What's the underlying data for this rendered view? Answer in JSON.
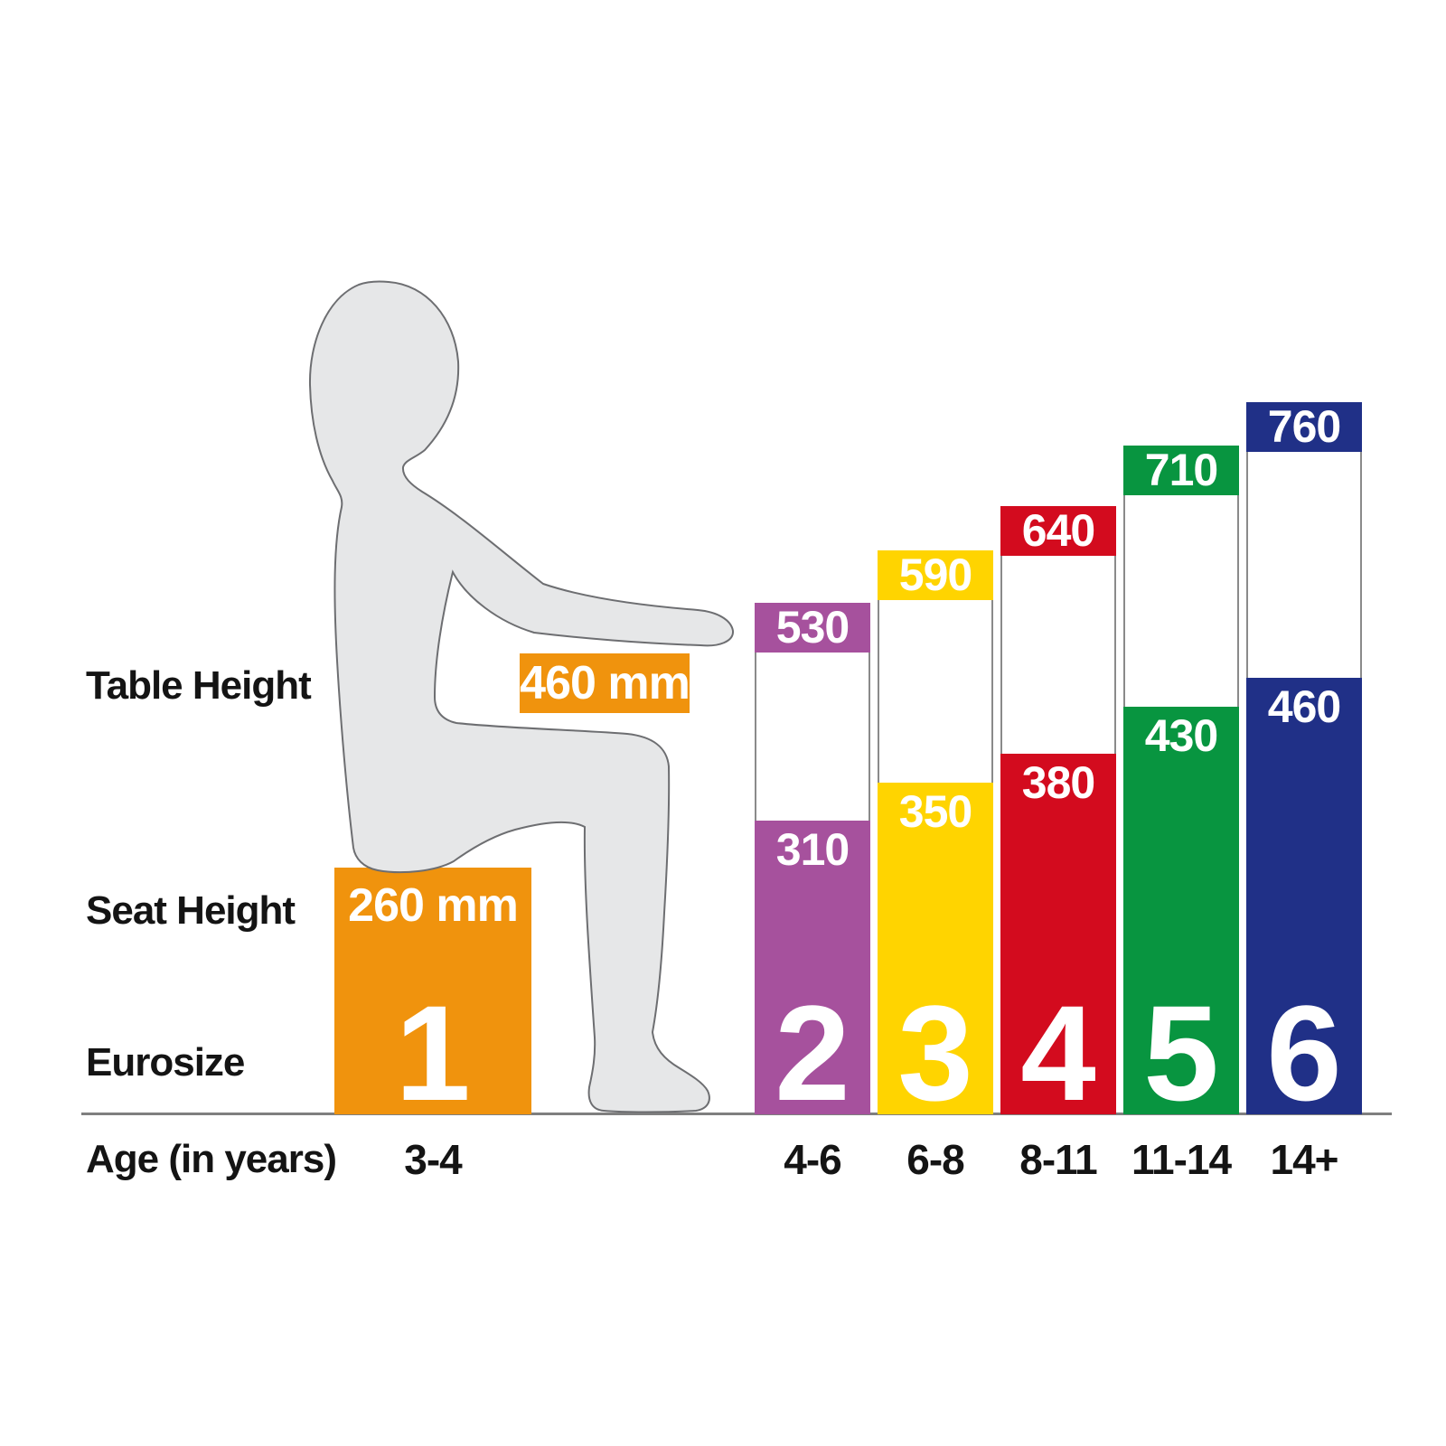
{
  "labels": {
    "table_height": "Table Height",
    "seat_height": "Seat Height",
    "eurosize": "Eurosize",
    "age": "Age (in years)"
  },
  "size1": {
    "table_label": "460 mm",
    "seat_label": "260 mm",
    "eurosize": "1",
    "age": "3-4",
    "table_mm": 460,
    "seat_mm": 260,
    "color": "#F0930D"
  },
  "bars": [
    {
      "eurosize": "2",
      "age": "4-6",
      "table_label": "530",
      "seat_label": "310",
      "table_mm": 530,
      "seat_mm": 310,
      "color": "#A6519D"
    },
    {
      "eurosize": "3",
      "age": "6-8",
      "table_label": "590",
      "seat_label": "350",
      "table_mm": 590,
      "seat_mm": 350,
      "color": "#FFD400"
    },
    {
      "eurosize": "4",
      "age": "8-11",
      "table_label": "640",
      "seat_label": "380",
      "table_mm": 640,
      "seat_mm": 380,
      "color": "#D30B1E"
    },
    {
      "eurosize": "5",
      "age": "11-14",
      "table_label": "710",
      "seat_label": "430",
      "table_mm": 710,
      "seat_mm": 430,
      "color": "#089540"
    },
    {
      "eurosize": "6",
      "age": "14+",
      "table_label": "760",
      "seat_label": "460",
      "table_mm": 760,
      "seat_mm": 460,
      "color": "#203087"
    }
  ],
  "colors": {
    "silhouette_fill": "#E6E7E8",
    "silhouette_stroke": "#6D6E71",
    "baseline": "#7F7F7F",
    "text_dark": "#141414",
    "text_on_bar": "#FFFFFF"
  },
  "chart_data": {
    "type": "bar",
    "title": "Children's furniture sizing: table and seat heights by Eurosize",
    "units": "mm",
    "categories": [
      "1",
      "2",
      "3",
      "4",
      "5",
      "6"
    ],
    "category_label": "Eurosize",
    "ages": [
      "3-4",
      "4-6",
      "6-8",
      "8-11",
      "11-14",
      "14+"
    ],
    "age_label": "Age (in years)",
    "series": [
      {
        "name": "Table Height",
        "values": [
          460,
          530,
          590,
          640,
          710,
          760
        ]
      },
      {
        "name": "Seat Height",
        "values": [
          260,
          310,
          350,
          380,
          430,
          460
        ]
      }
    ],
    "bar_colors": [
      "#F0930D",
      "#A6519D",
      "#FFD400",
      "#D30B1E",
      "#089540",
      "#203087"
    ],
    "legend_position": "none",
    "grid": false
  }
}
